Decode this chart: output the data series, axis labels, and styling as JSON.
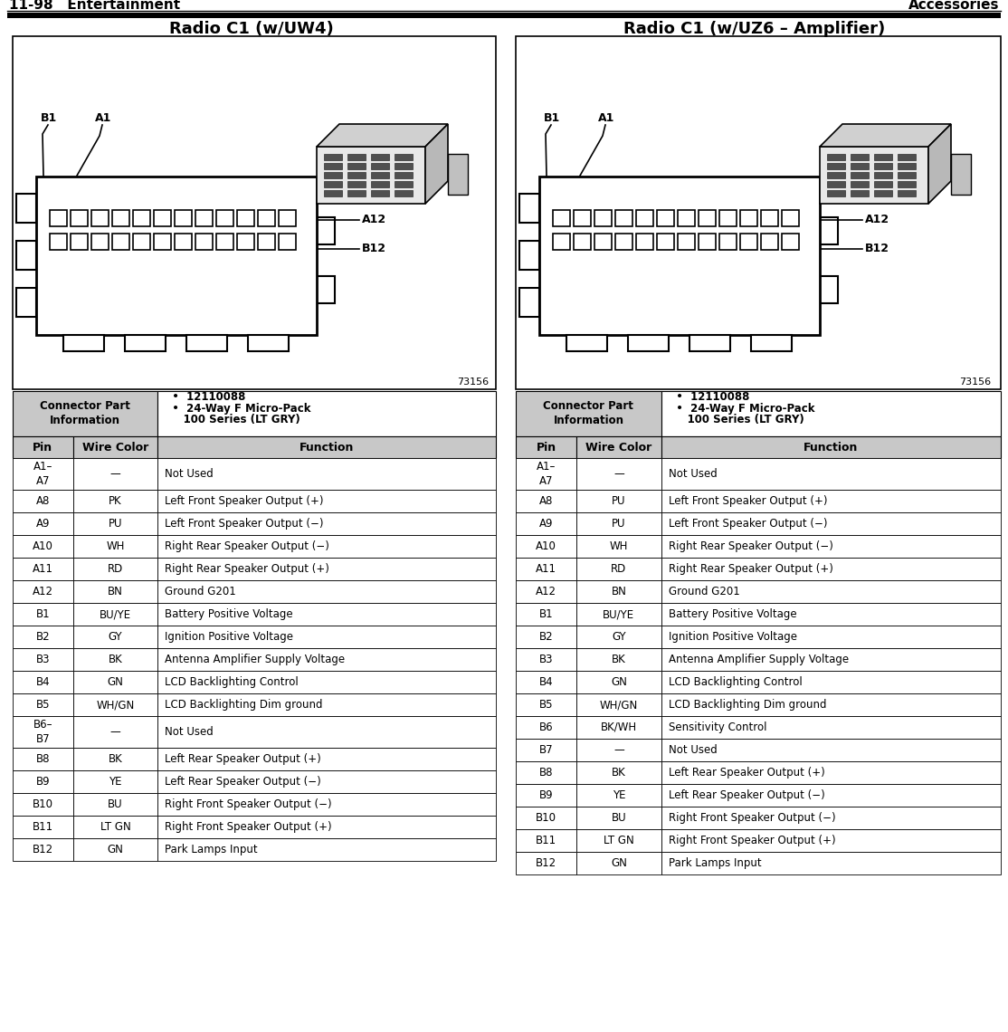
{
  "page_header_left": "11-98   Entertainment",
  "page_header_right": "Accessories",
  "title_left": "Radio C1 (w/UW4)",
  "title_right": "Radio C1 (w/UZ6 – Amplifier)",
  "connector_info_line1": "  •  12110088",
  "connector_info_line2": "  •  24-Way F Micro-Pack",
  "connector_info_line3": "     100 Series (LT GRY)",
  "figure_number": "73156",
  "table_left": {
    "headers": [
      "Pin",
      "Wire Color",
      "Function"
    ],
    "rows": [
      [
        "A1–\nA7",
        "—",
        "Not Used"
      ],
      [
        "A8",
        "PK",
        "Left Front Speaker Output (+)"
      ],
      [
        "A9",
        "PU",
        "Left Front Speaker Output (−)"
      ],
      [
        "A10",
        "WH",
        "Right Rear Speaker Output (−)"
      ],
      [
        "A11",
        "RD",
        "Right Rear Speaker Output (+)"
      ],
      [
        "A12",
        "BN",
        "Ground G201"
      ],
      [
        "B1",
        "BU/YE",
        "Battery Positive Voltage"
      ],
      [
        "B2",
        "GY",
        "Ignition Positive Voltage"
      ],
      [
        "B3",
        "BK",
        "Antenna Amplifier Supply Voltage"
      ],
      [
        "B4",
        "GN",
        "LCD Backlighting Control"
      ],
      [
        "B5",
        "WH/GN",
        "LCD Backlighting Dim ground"
      ],
      [
        "B6–\nB7",
        "—",
        "Not Used"
      ],
      [
        "B8",
        "BK",
        "Left Rear Speaker Output (+)"
      ],
      [
        "B9",
        "YE",
        "Left Rear Speaker Output (−)"
      ],
      [
        "B10",
        "BU",
        "Right Front Speaker Output (−)"
      ],
      [
        "B11",
        "LT GN",
        "Right Front Speaker Output (+)"
      ],
      [
        "B12",
        "GN",
        "Park Lamps Input"
      ]
    ]
  },
  "table_right": {
    "headers": [
      "Pin",
      "Wire Color",
      "Function"
    ],
    "rows": [
      [
        "A1–\nA7",
        "—",
        "Not Used"
      ],
      [
        "A8",
        "PU",
        "Left Front Speaker Output (+)"
      ],
      [
        "A9",
        "PU",
        "Left Front Speaker Output (−)"
      ],
      [
        "A10",
        "WH",
        "Right Rear Speaker Output (−)"
      ],
      [
        "A11",
        "RD",
        "Right Rear Speaker Output (+)"
      ],
      [
        "A12",
        "BN",
        "Ground G201"
      ],
      [
        "B1",
        "BU/YE",
        "Battery Positive Voltage"
      ],
      [
        "B2",
        "GY",
        "Ignition Positive Voltage"
      ],
      [
        "B3",
        "BK",
        "Antenna Amplifier Supply Voltage"
      ],
      [
        "B4",
        "GN",
        "LCD Backlighting Control"
      ],
      [
        "B5",
        "WH/GN",
        "LCD Backlighting Dim ground"
      ],
      [
        "B6",
        "BK/WH",
        "Sensitivity Control"
      ],
      [
        "B7",
        "—",
        "Not Used"
      ],
      [
        "B8",
        "BK",
        "Left Rear Speaker Output (+)"
      ],
      [
        "B9",
        "YE",
        "Left Rear Speaker Output (−)"
      ],
      [
        "B10",
        "BU",
        "Right Front Speaker Output (−)"
      ],
      [
        "B11",
        "LT GN",
        "Right Front Speaker Output (+)"
      ],
      [
        "B12",
        "GN",
        "Park Lamps Input"
      ]
    ]
  },
  "bg_color": "#ffffff",
  "gray_bg": "#c8c8c8",
  "border_color": "#000000"
}
